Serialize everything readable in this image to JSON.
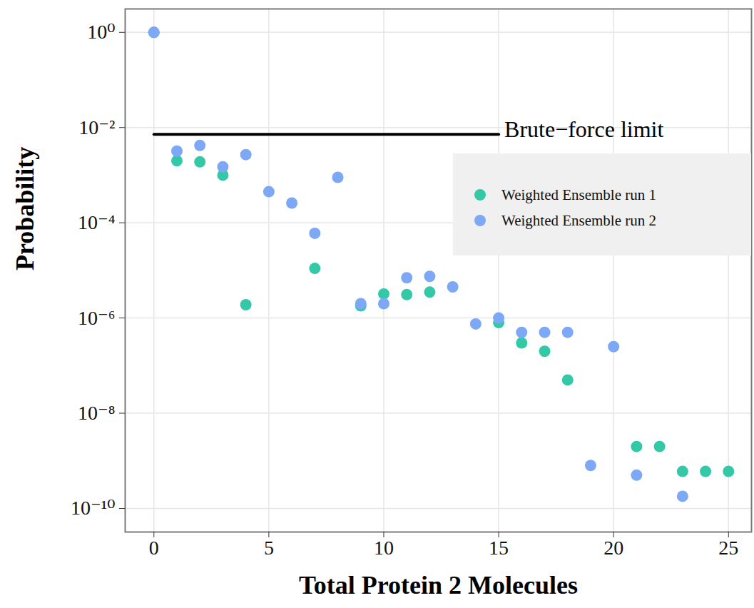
{
  "chart_data": {
    "type": "scatter",
    "x_label": "Total Protein 2 Molecules",
    "y_label": "Probability",
    "log": "y",
    "grid": true,
    "legend": "right",
    "xlim": [
      -1.25,
      26
    ],
    "xticks": [
      0,
      5,
      10,
      15,
      20,
      25
    ],
    "ylim": [
      3.2e-11,
      3.1
    ],
    "yticks": [
      {
        "value": 1,
        "label": "10⁰"
      },
      {
        "value": 0.01,
        "label": "10⁻²"
      },
      {
        "value": 0.0001,
        "label": "10⁻⁴"
      },
      {
        "value": 1e-06,
        "label": "10⁻⁶"
      },
      {
        "value": 1e-08,
        "label": "10⁻⁸"
      },
      {
        "value": 1e-10,
        "label": "10⁻¹⁰"
      }
    ],
    "series": [
      {
        "name": "Weighted Ensemble run 1",
        "color": "#33c9a6",
        "marker": "circle",
        "x": [
          0,
          1,
          2,
          3,
          4,
          7,
          9,
          10,
          11,
          12,
          15,
          16,
          17,
          18,
          21,
          22,
          23,
          24,
          25
        ],
        "values": [
          1,
          0.002,
          0.0019,
          0.001,
          1.9e-06,
          1.1e-05,
          1.8e-06,
          3.2e-06,
          3.1e-06,
          3.5e-06,
          8e-07,
          3e-07,
          2e-07,
          5e-08,
          2e-09,
          2e-09,
          6e-10,
          6e-10,
          6e-10
        ]
      },
      {
        "name": "Weighted Ensemble run 2",
        "color": "#7ca8f6",
        "marker": "circle",
        "x": [
          0,
          1,
          2,
          3,
          4,
          5,
          6,
          7,
          8,
          9,
          10,
          11,
          12,
          13,
          14,
          15,
          16,
          17,
          18,
          19,
          20,
          21,
          23
        ],
        "values": [
          1,
          0.0032,
          0.0042,
          0.0015,
          0.0027,
          0.00045,
          0.00026,
          6e-05,
          0.0009,
          2e-06,
          2e-06,
          7e-06,
          7.5e-06,
          4.5e-06,
          7.5e-07,
          1e-06,
          5e-07,
          5e-07,
          5e-07,
          8e-10,
          2.5e-07,
          5e-10,
          1.8e-10
        ]
      }
    ],
    "annotations": [
      {
        "text": "Brute−force limit",
        "x0": 0,
        "x1": 15,
        "y": 0.0072,
        "color": "#000000"
      }
    ]
  }
}
